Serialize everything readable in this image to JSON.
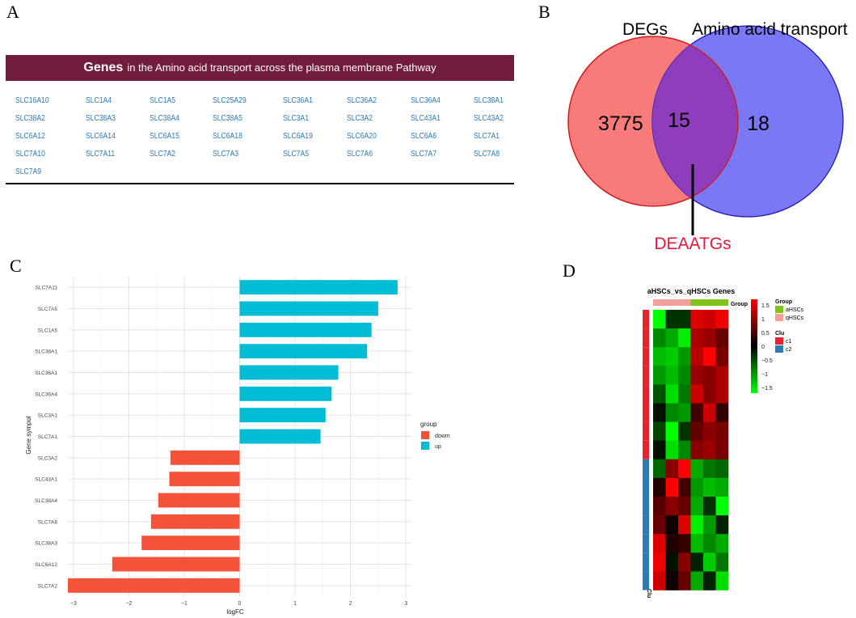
{
  "panels": {
    "a": "A",
    "b": "B",
    "c": "C",
    "d": "D"
  },
  "genes_table": {
    "title_bold": "Genes",
    "title_rest": "in the Amino acid transport across the plasma membrane Pathway",
    "genes": [
      "SLC16A10",
      "SLC1A4",
      "SLC1A5",
      "SLC25A29",
      "SLC36A1",
      "SLC36A2",
      "SLC36A4",
      "SLC38A1",
      "SLC38A2",
      "SLC38A3",
      "SLC38A4",
      "SLC38A5",
      "SLC3A1",
      "SLC3A2",
      "SLC43A1",
      "SLC43A2",
      "SLC6A12",
      "SLC6A14",
      "SLC6A15",
      "SLC6A18",
      "SLC6A19",
      "SLC6A20",
      "SLC6A6",
      "SLC7A1",
      "SLC7A10",
      "SLC7A11",
      "SLC7A2",
      "SLC7A3",
      "SLC7A5",
      "SLC7A6",
      "SLC7A7",
      "SLC7A8",
      "SLC7A9"
    ]
  },
  "venn": {
    "left_label": "DEGs",
    "right_label": "Amino acid transport",
    "left_only": "3775",
    "overlap": "15",
    "right_only": "18",
    "pointer_label": "DEAATGs",
    "colors": {
      "left": "#f77b7b",
      "right": "#7b78f6",
      "overlap": "#8e3ebd",
      "left_border": "#d11a1a",
      "right_border": "#1a1ab3",
      "pointer": "#e8173a"
    }
  },
  "chart_data": {
    "type": "bar",
    "orientation": "horizontal",
    "xlabel": "logFC",
    "ylabel": "Gene sympol",
    "xlim": [
      -3.1,
      3.1
    ],
    "xticks": [
      -3,
      -2,
      -1,
      0,
      1,
      2,
      3
    ],
    "xtick_labels": [
      "−3",
      "−2",
      "−1",
      "0",
      "1",
      "2",
      "3"
    ],
    "categories": [
      "SLC7A11",
      "SLC7A5",
      "SLC1A5",
      "SLC38A1",
      "SLC36A1",
      "SLC36A4",
      "SLC3A1",
      "SLC7A1",
      "SLC3A2",
      "SLC43A1",
      "SLC38A4",
      "SLC7A8",
      "SLC38A3",
      "SLC6A12",
      "SLC7A2"
    ],
    "values": [
      2.85,
      2.5,
      2.38,
      2.3,
      1.78,
      1.66,
      1.55,
      1.46,
      -1.25,
      -1.27,
      -1.47,
      -1.6,
      -1.77,
      -2.3,
      -3.1
    ],
    "groups": [
      "up",
      "up",
      "up",
      "up",
      "up",
      "up",
      "up",
      "up",
      "dowm",
      "dowm",
      "dowm",
      "dowm",
      "dowm",
      "dowm",
      "dowm"
    ],
    "legend": {
      "title": "group",
      "entries": [
        "dowm",
        "up"
      ],
      "colors": [
        "#f4533a",
        "#00bcd4"
      ],
      "position": "right"
    }
  },
  "heatmap": {
    "title": "aHSCs_vs_qHSCs Genes",
    "group_label": "Group",
    "clu_label": "Clu",
    "legend_group_title": "Group",
    "legend_group_entries": [
      "aHSCs",
      "qHSCs"
    ],
    "legend_group_colors": [
      "#7fc31c",
      "#f4a09a"
    ],
    "legend_clu_title": "Clu",
    "legend_clu_entries": [
      "c1",
      "c2"
    ],
    "legend_clu_colors": [
      "#e8222a",
      "#2b7bb9"
    ],
    "scale_ticks": [
      "1.5",
      "1",
      "0.5",
      "0",
      "−0.5",
      "−1",
      "−1.5"
    ],
    "scale_values": [
      1.5,
      1,
      0.5,
      0,
      -0.5,
      -1,
      -1.5
    ],
    "column_groups": [
      "qHSCs",
      "qHSCs",
      "qHSCs",
      "aHSCs",
      "aHSCs",
      "aHSCs"
    ],
    "row_clusters": [
      "c1",
      "c1",
      "c1",
      "c1",
      "c1",
      "c1",
      "c1",
      "c1",
      "c2",
      "c2",
      "c2",
      "c2",
      "c2",
      "c2",
      "c2"
    ],
    "matrix": [
      [
        -1.5,
        -0.3,
        -0.3,
        1.3,
        1.2,
        1.4
      ],
      [
        -0.8,
        -1.0,
        -1.4,
        1.0,
        0.9,
        0.6
      ],
      [
        -1.1,
        -1.2,
        -0.9,
        1.1,
        1.5,
        0.7
      ],
      [
        -0.9,
        -1.1,
        -0.8,
        0.9,
        0.8,
        1.0
      ],
      [
        -0.5,
        -1.3,
        -0.7,
        1.2,
        0.8,
        1.0
      ],
      [
        -0.1,
        -0.8,
        -0.9,
        0.4,
        1.2,
        0.3
      ],
      [
        -0.4,
        -1.5,
        -0.3,
        0.6,
        0.8,
        0.7
      ],
      [
        -0.1,
        -1.3,
        -0.8,
        0.8,
        0.9,
        0.7
      ],
      [
        -0.6,
        0.8,
        1.5,
        -1.0,
        -0.7,
        -0.6
      ],
      [
        0.2,
        1.5,
        0.4,
        -0.9,
        -1.1,
        -1.0
      ],
      [
        0.5,
        0.8,
        0.6,
        -1.0,
        -0.3,
        -1.5
      ],
      [
        0.6,
        0.1,
        1.3,
        -1.4,
        -0.9,
        -0.2
      ],
      [
        1.3,
        0.2,
        0.3,
        -1.1,
        -0.8,
        -1.0
      ],
      [
        1.4,
        -0.1,
        0.8,
        -0.2,
        -1.2,
        -0.7
      ],
      [
        1.2,
        0.1,
        0.6,
        -1.0,
        -0.2,
        -1.3
      ]
    ]
  }
}
